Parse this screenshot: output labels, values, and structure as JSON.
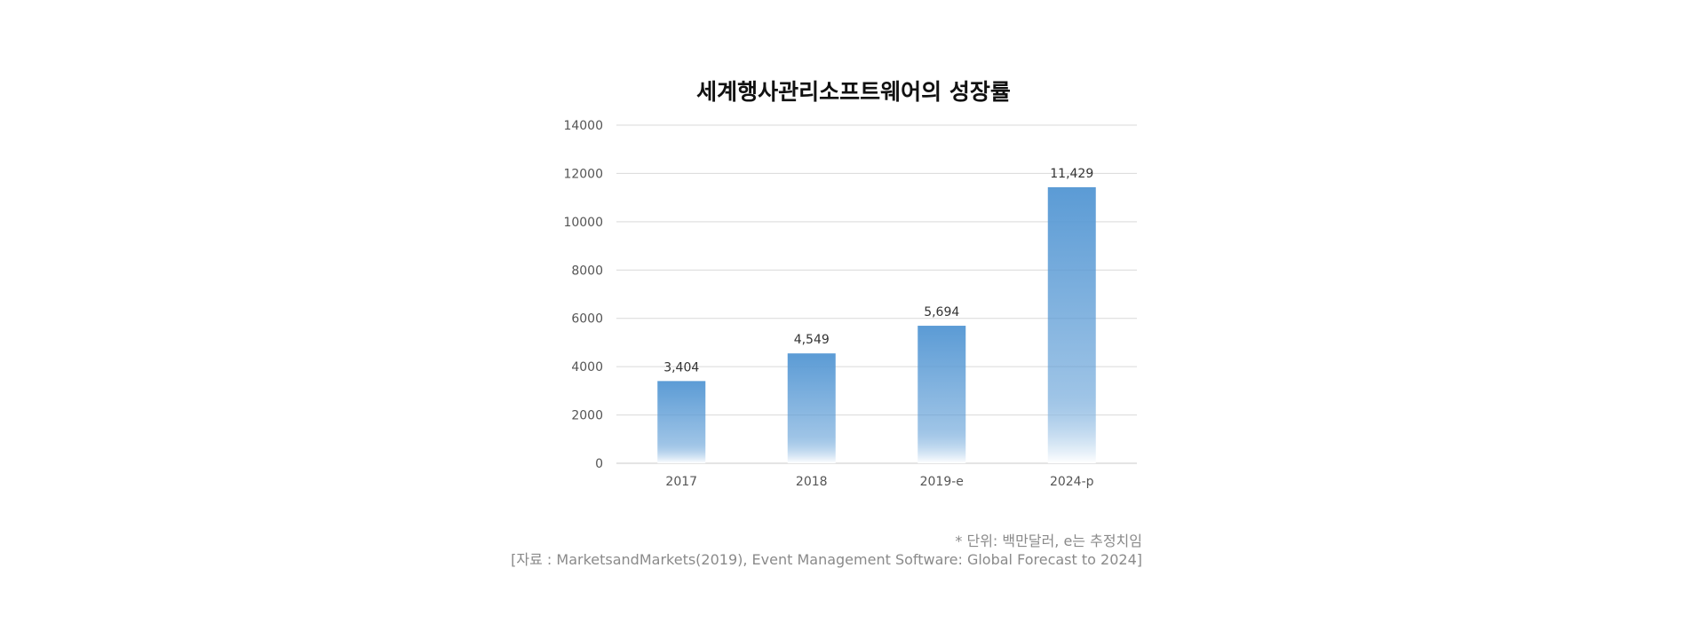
{
  "chart_data": {
    "type": "bar",
    "title": "세계행사관리소프트웨어의 성장률",
    "categories": [
      "2017",
      "2018",
      "2019-e",
      "2024-p"
    ],
    "values": [
      3404,
      4549,
      5694,
      11429
    ],
    "value_labels": [
      "3,404",
      "4,549",
      "5,694",
      "11,429"
    ],
    "y_ticks": [
      "0",
      "2000",
      "4000",
      "6000",
      "8000",
      "10000",
      "12000",
      "14000"
    ],
    "ylim": [
      0,
      14000
    ],
    "xlabel": "",
    "ylabel": "",
    "grid": true,
    "bar_color": "#5b9bd5",
    "bar_fade_color": "#ffffff"
  },
  "footnotes": {
    "unit_note": "* 단위: 백만달러, e는 추정치임",
    "source": "[자료 : MarketsandMarkets(2019), Event Management Software: Global Forecast to 2024]"
  }
}
